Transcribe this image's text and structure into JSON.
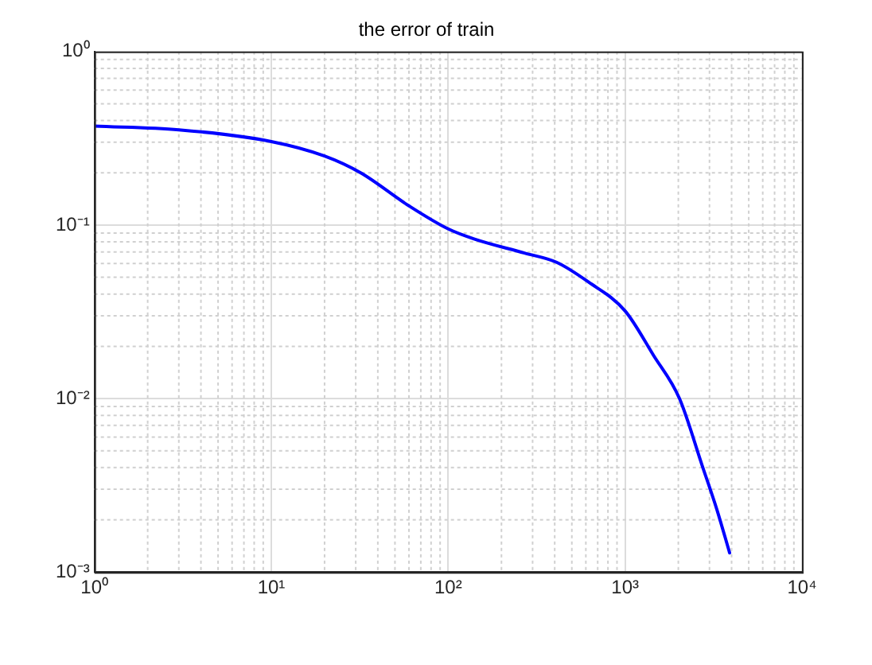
{
  "chart_data": {
    "type": "line",
    "title": "the error of train",
    "log": "xy",
    "grid": true,
    "legend": false,
    "marker": "none",
    "line_style": "solid",
    "xlim": [
      1,
      10000
    ],
    "xticks": [
      {
        "value": 1,
        "label": "10⁰"
      },
      {
        "value": 10,
        "label": "10¹"
      },
      {
        "value": 100,
        "label": "10²"
      },
      {
        "value": 1000,
        "label": "10³"
      },
      {
        "value": 10000,
        "label": "10⁴"
      }
    ],
    "ylim": [
      0.001,
      1
    ],
    "yticks": [
      {
        "value": 0.001,
        "label": "10⁻³"
      },
      {
        "value": 0.01,
        "label": "10⁻²"
      },
      {
        "value": 0.1,
        "label": "10⁻¹"
      },
      {
        "value": 1,
        "label": "10⁰"
      }
    ],
    "series": [
      {
        "color": "#0000ff",
        "x": [
          1,
          3,
          10,
          20,
          32,
          60,
          100,
          141,
          270,
          410,
          620,
          1000,
          1450,
          2030,
          2730,
          3300,
          3900
        ],
        "values": [
          0.372,
          0.354,
          0.303,
          0.25,
          0.2,
          0.129,
          0.095,
          0.083,
          0.069,
          0.061,
          0.047,
          0.032,
          0.0177,
          0.01,
          0.0041,
          0.0023,
          0.00129
        ]
      }
    ]
  }
}
